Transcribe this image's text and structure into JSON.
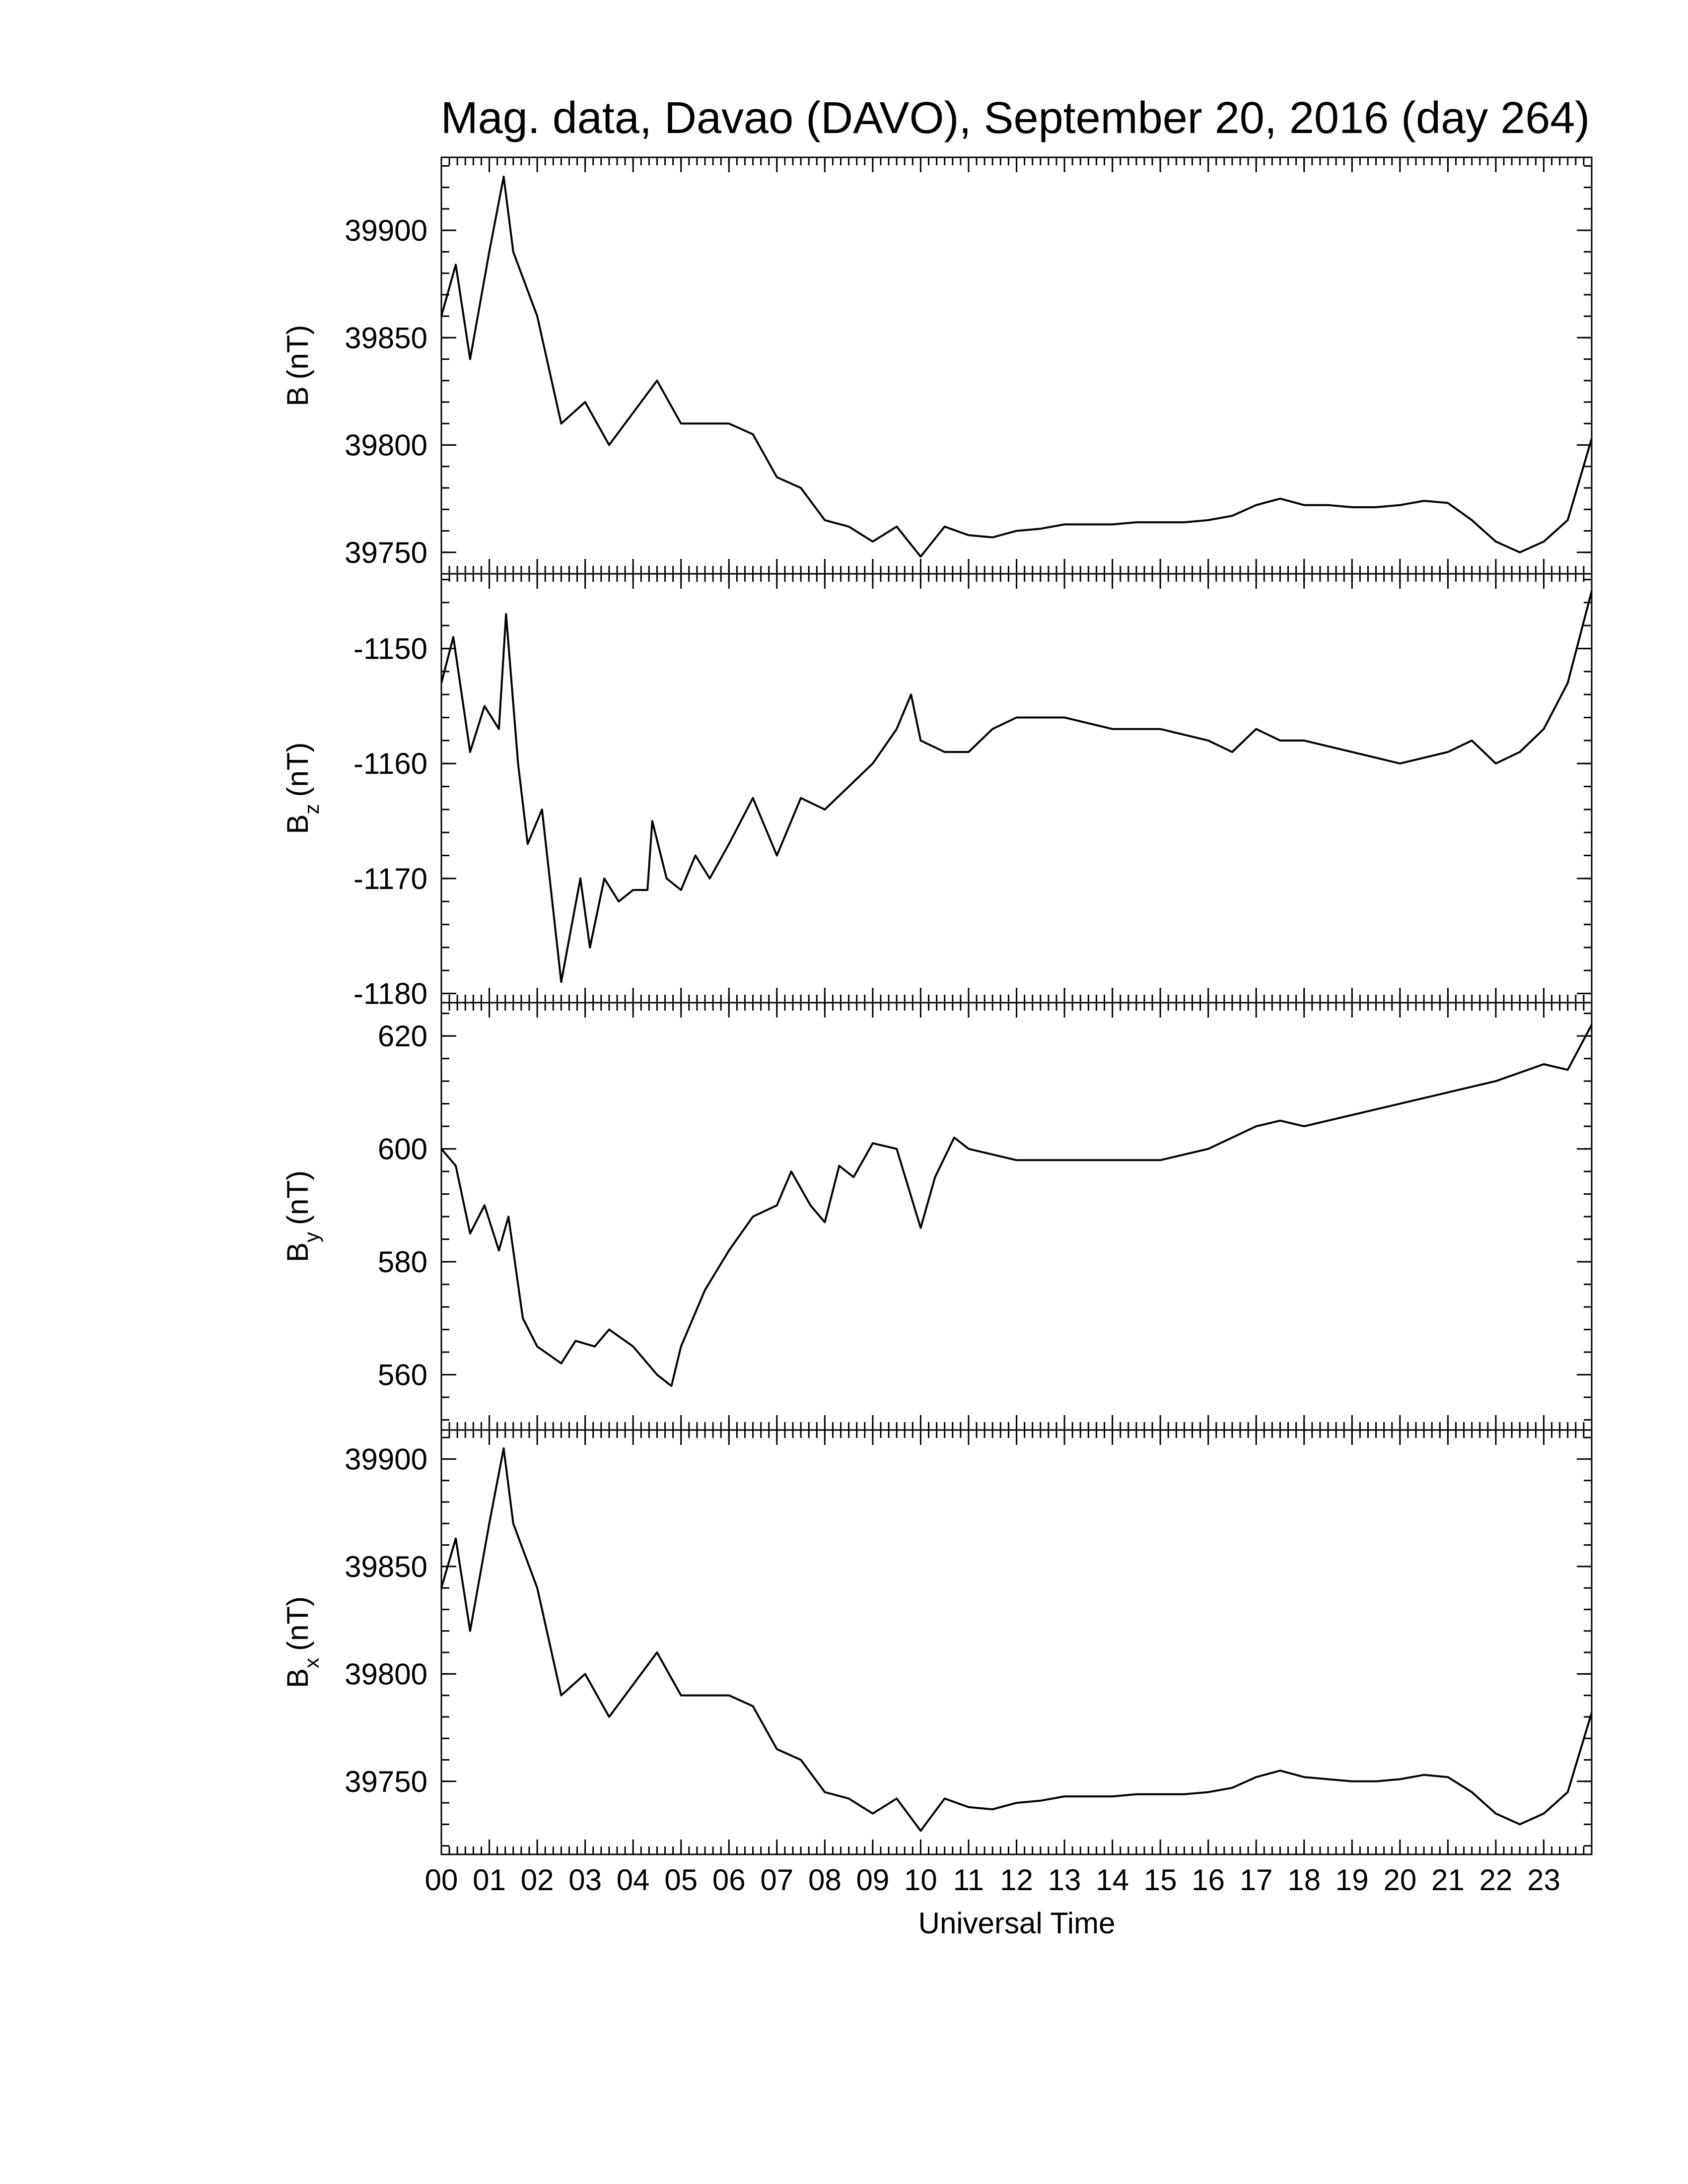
{
  "title": "Mag. data, Davao (DAVO), September 20, 2016 (day 264)",
  "xlabel": "Universal Time",
  "xlim": [
    0,
    24
  ],
  "xticks": [
    {
      "value": 0,
      "label": "00"
    },
    {
      "value": 1,
      "label": "01"
    },
    {
      "value": 2,
      "label": "02"
    },
    {
      "value": 3,
      "label": "03"
    },
    {
      "value": 4,
      "label": "04"
    },
    {
      "value": 5,
      "label": "05"
    },
    {
      "value": 6,
      "label": "06"
    },
    {
      "value": 7,
      "label": "07"
    },
    {
      "value": 8,
      "label": "08"
    },
    {
      "value": 9,
      "label": "09"
    },
    {
      "value": 10,
      "label": "10"
    },
    {
      "value": 11,
      "label": "11"
    },
    {
      "value": 12,
      "label": "12"
    },
    {
      "value": 13,
      "label": "13"
    },
    {
      "value": 14,
      "label": "14"
    },
    {
      "value": 15,
      "label": "15"
    },
    {
      "value": 16,
      "label": "16"
    },
    {
      "value": 17,
      "label": "17"
    },
    {
      "value": 18,
      "label": "18"
    },
    {
      "value": 19,
      "label": "19"
    },
    {
      "value": 20,
      "label": "20"
    },
    {
      "value": 21,
      "label": "21"
    },
    {
      "value": 22,
      "label": "22"
    },
    {
      "value": 23,
      "label": "23"
    }
  ],
  "chart_data": [
    {
      "type": "line",
      "ylabel": "B",
      "ylabel_unit": "(nT)",
      "color": "#000000",
      "ylim": [
        39740,
        39934
      ],
      "yticks": [
        39750,
        39800,
        39850,
        39900
      ],
      "x": [
        0,
        0.3,
        0.6,
        1,
        1.3,
        1.5,
        2,
        2.5,
        3,
        3.5,
        4,
        4.5,
        5,
        5.5,
        6,
        6.5,
        7,
        7.5,
        8,
        8.5,
        9,
        9.5,
        10,
        10.5,
        11,
        11.5,
        12,
        12.5,
        13,
        13.5,
        14,
        14.5,
        15,
        15.5,
        16,
        16.5,
        17,
        17.5,
        18,
        18.5,
        19,
        19.5,
        20,
        20.5,
        21,
        21.5,
        22,
        22.5,
        23,
        23.5,
        24
      ],
      "values": [
        39860,
        39884,
        39840,
        39890,
        39925,
        39890,
        39860,
        39810,
        39820,
        39800,
        39815,
        39830,
        39810,
        39810,
        39810,
        39805,
        39785,
        39780,
        39765,
        39762,
        39755,
        39762,
        39748,
        39762,
        39758,
        39757,
        39760,
        39761,
        39763,
        39763,
        39763,
        39764,
        39764,
        39764,
        39765,
        39767,
        39772,
        39775,
        39772,
        39772,
        39771,
        39771,
        39772,
        39774,
        39773,
        39765,
        39755,
        39750,
        39755,
        39765,
        39803
      ]
    },
    {
      "type": "line",
      "ylabel": "B",
      "ylabel_sub": "z",
      "ylabel_unit": "(nT)",
      "color": "#000000",
      "ylim": [
        -1180.8,
        -1143.5
      ],
      "yticks": [
        -1180,
        -1170,
        -1160,
        -1150
      ],
      "x": [
        0,
        0.25,
        0.6,
        0.9,
        1.2,
        1.35,
        1.6,
        1.8,
        2.1,
        2.5,
        2.9,
        3.1,
        3.4,
        3.7,
        4,
        4.3,
        4.4,
        4.7,
        5,
        5.3,
        5.6,
        6,
        6.5,
        7,
        7.5,
        8,
        8.5,
        9,
        9.5,
        9.8,
        10,
        10.5,
        11,
        11.5,
        12,
        12.5,
        13,
        14,
        15,
        16,
        16.5,
        17,
        17.5,
        18,
        19,
        20,
        21,
        21.5,
        22,
        22.5,
        23,
        23.5,
        24
      ],
      "values": [
        -1153,
        -1149,
        -1159,
        -1155,
        -1157,
        -1147,
        -1160,
        -1167,
        -1164,
        -1179,
        -1170,
        -1176,
        -1170,
        -1172,
        -1171,
        -1171,
        -1165,
        -1170,
        -1171,
        -1168,
        -1170,
        -1167,
        -1163,
        -1168,
        -1163,
        -1164,
        -1162,
        -1160,
        -1157,
        -1154,
        -1158,
        -1159,
        -1159,
        -1157,
        -1156,
        -1156,
        -1156,
        -1157,
        -1157,
        -1158,
        -1159,
        -1157,
        -1158,
        -1158,
        -1159,
        -1160,
        -1159,
        -1158,
        -1160,
        -1159,
        -1157,
        -1153,
        -1145
      ]
    },
    {
      "type": "line",
      "ylabel": "B",
      "ylabel_sub": "y",
      "ylabel_unit": "(nT)",
      "color": "#000000",
      "ylim": [
        550.2,
        625.9
      ],
      "yticks": [
        560,
        580,
        600,
        620
      ],
      "x": [
        0,
        0.3,
        0.6,
        0.9,
        1.2,
        1.4,
        1.7,
        2,
        2.5,
        2.8,
        3.2,
        3.5,
        4,
        4.5,
        4.8,
        5,
        5.5,
        6,
        6.5,
        7,
        7.3,
        7.7,
        8,
        8.3,
        8.6,
        9,
        9.5,
        10,
        10.3,
        10.7,
        11,
        12,
        13,
        14,
        15,
        16,
        17,
        17.5,
        18,
        19,
        20,
        21,
        22,
        23,
        23.5,
        24
      ],
      "values": [
        600,
        597,
        585,
        590,
        582,
        588,
        570,
        565,
        562,
        566,
        565,
        568,
        565,
        560,
        558,
        565,
        575,
        582,
        588,
        590,
        596,
        590,
        587,
        597,
        595,
        601,
        600,
        586,
        595,
        602,
        600,
        598,
        598,
        598,
        598,
        600,
        604,
        605,
        604,
        606,
        608,
        610,
        612,
        615,
        614,
        622
      ]
    },
    {
      "type": "line",
      "ylabel": "B",
      "ylabel_sub": "x",
      "ylabel_unit": "(nT)",
      "color": "#000000",
      "ylim": [
        39716,
        39913.5
      ],
      "yticks": [
        39750,
        39800,
        39850,
        39900
      ],
      "x": [
        0,
        0.3,
        0.6,
        1,
        1.3,
        1.5,
        2,
        2.5,
        3,
        3.5,
        4,
        4.5,
        5,
        5.5,
        6,
        6.5,
        7,
        7.5,
        8,
        8.5,
        9,
        9.5,
        10,
        10.5,
        11,
        11.5,
        12,
        12.5,
        13,
        13.5,
        14,
        14.5,
        15,
        15.5,
        16,
        16.5,
        17,
        17.5,
        18,
        18.5,
        19,
        19.5,
        20,
        20.5,
        21,
        21.5,
        22,
        22.5,
        23,
        23.5,
        24
      ],
      "values": [
        39840,
        39863,
        39820,
        39870,
        39905,
        39870,
        39840,
        39790,
        39800,
        39780,
        39795,
        39810,
        39790,
        39790,
        39790,
        39785,
        39765,
        39760,
        39745,
        39742,
        39735,
        39742,
        39727,
        39742,
        39738,
        39737,
        39740,
        39741,
        39743,
        39743,
        39743,
        39744,
        39744,
        39744,
        39745,
        39747,
        39752,
        39755,
        39752,
        39751,
        39750,
        39750,
        39751,
        39753,
        39752,
        39745,
        39735,
        39730,
        39735,
        39745,
        39782
      ]
    }
  ]
}
